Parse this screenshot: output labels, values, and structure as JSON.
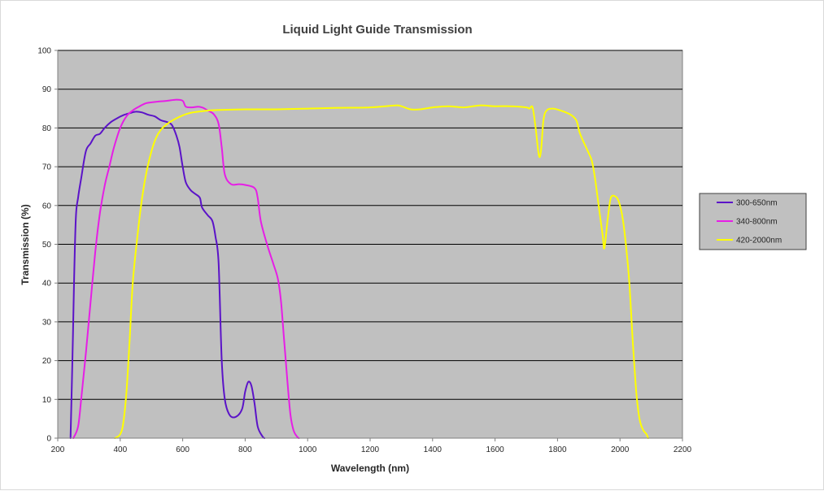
{
  "chart_data": {
    "type": "line",
    "title": "Liquid Light Guide Transmission",
    "xlabel": "Wavelength (nm)",
    "ylabel": "Transmission (%)",
    "xlim": [
      200,
      2200
    ],
    "ylim": [
      0,
      100
    ],
    "xticks": [
      200,
      400,
      600,
      800,
      1000,
      1200,
      1400,
      1600,
      1800,
      2000,
      2200
    ],
    "yticks": [
      0,
      10,
      20,
      30,
      40,
      50,
      60,
      70,
      80,
      90,
      100
    ],
    "grid": "horizontal",
    "legend_position": "right",
    "plot_background": "#c0c0c0",
    "series": [
      {
        "name": "300-650nm",
        "color": "#5b13c8",
        "points": [
          [
            241,
            0
          ],
          [
            247,
            20
          ],
          [
            252,
            40
          ],
          [
            258,
            57
          ],
          [
            265,
            62
          ],
          [
            275,
            67
          ],
          [
            290,
            74
          ],
          [
            305,
            76
          ],
          [
            320,
            78
          ],
          [
            335,
            78.5
          ],
          [
            350,
            80
          ],
          [
            370,
            81.5
          ],
          [
            390,
            82.5
          ],
          [
            410,
            83.3
          ],
          [
            430,
            83.8
          ],
          [
            450,
            84.2
          ],
          [
            470,
            84
          ],
          [
            490,
            83.4
          ],
          [
            510,
            83
          ],
          [
            530,
            82
          ],
          [
            550,
            81.5
          ],
          [
            565,
            80.8
          ],
          [
            580,
            78
          ],
          [
            590,
            75
          ],
          [
            600,
            70
          ],
          [
            610,
            66
          ],
          [
            625,
            64
          ],
          [
            640,
            63
          ],
          [
            655,
            62
          ],
          [
            662,
            59.5
          ],
          [
            680,
            57.5
          ],
          [
            695,
            56
          ],
          [
            705,
            52
          ],
          [
            715,
            45
          ],
          [
            725,
            20
          ],
          [
            735,
            10
          ],
          [
            750,
            6
          ],
          [
            770,
            5.5
          ],
          [
            790,
            7.5
          ],
          [
            800,
            12
          ],
          [
            810,
            14.5
          ],
          [
            820,
            13.5
          ],
          [
            830,
            9
          ],
          [
            840,
            3
          ],
          [
            855,
            0.5
          ],
          [
            862,
            0
          ]
        ]
      },
      {
        "name": "340-800nm",
        "color": "#e61ee6",
        "points": [
          [
            250,
            0
          ],
          [
            265,
            3
          ],
          [
            275,
            10
          ],
          [
            290,
            22
          ],
          [
            305,
            35
          ],
          [
            320,
            48
          ],
          [
            335,
            58
          ],
          [
            350,
            65
          ],
          [
            365,
            70
          ],
          [
            380,
            75
          ],
          [
            400,
            80
          ],
          [
            420,
            83
          ],
          [
            440,
            84.5
          ],
          [
            460,
            85.5
          ],
          [
            480,
            86.3
          ],
          [
            500,
            86.6
          ],
          [
            520,
            86.8
          ],
          [
            550,
            87
          ],
          [
            580,
            87.3
          ],
          [
            600,
            87
          ],
          [
            610,
            85.5
          ],
          [
            630,
            85.3
          ],
          [
            650,
            85.5
          ],
          [
            665,
            85.2
          ],
          [
            680,
            84.5
          ],
          [
            700,
            83.5
          ],
          [
            715,
            81
          ],
          [
            725,
            75
          ],
          [
            735,
            68
          ],
          [
            755,
            65.5
          ],
          [
            780,
            65.5
          ],
          [
            800,
            65.3
          ],
          [
            830,
            64.5
          ],
          [
            840,
            62
          ],
          [
            850,
            56
          ],
          [
            870,
            50
          ],
          [
            890,
            45
          ],
          [
            905,
            41
          ],
          [
            915,
            35
          ],
          [
            925,
            25
          ],
          [
            935,
            15
          ],
          [
            945,
            6
          ],
          [
            955,
            2
          ],
          [
            965,
            0.5
          ],
          [
            972,
            0
          ]
        ]
      },
      {
        "name": "420-2000nm",
        "color": "#ffff00",
        "points": [
          [
            383,
            0
          ],
          [
            400,
            1
          ],
          [
            410,
            4
          ],
          [
            420,
            12
          ],
          [
            430,
            25
          ],
          [
            440,
            40
          ],
          [
            455,
            52
          ],
          [
            470,
            62
          ],
          [
            485,
            69
          ],
          [
            500,
            74
          ],
          [
            515,
            77.5
          ],
          [
            530,
            79.5
          ],
          [
            550,
            81
          ],
          [
            580,
            82.5
          ],
          [
            620,
            83.8
          ],
          [
            660,
            84.3
          ],
          [
            700,
            84.6
          ],
          [
            800,
            84.8
          ],
          [
            900,
            84.8
          ],
          [
            1000,
            85
          ],
          [
            1100,
            85.2
          ],
          [
            1200,
            85.3
          ],
          [
            1280,
            85.8
          ],
          [
            1300,
            85.6
          ],
          [
            1330,
            84.8
          ],
          [
            1360,
            84.8
          ],
          [
            1400,
            85.3
          ],
          [
            1450,
            85.6
          ],
          [
            1500,
            85.3
          ],
          [
            1550,
            85.8
          ],
          [
            1600,
            85.6
          ],
          [
            1650,
            85.6
          ],
          [
            1700,
            85.3
          ],
          [
            1710,
            85
          ],
          [
            1720,
            85.3
          ],
          [
            1730,
            80
          ],
          [
            1740,
            73
          ],
          [
            1747,
            74
          ],
          [
            1755,
            82
          ],
          [
            1765,
            84.5
          ],
          [
            1785,
            85
          ],
          [
            1810,
            84.5
          ],
          [
            1840,
            83.5
          ],
          [
            1860,
            82
          ],
          [
            1870,
            79
          ],
          [
            1880,
            77
          ],
          [
            1900,
            73.5
          ],
          [
            1910,
            71.5
          ],
          [
            1920,
            67
          ],
          [
            1935,
            58
          ],
          [
            1945,
            52
          ],
          [
            1950,
            49
          ],
          [
            1960,
            56
          ],
          [
            1968,
            61
          ],
          [
            1975,
            62.5
          ],
          [
            1990,
            62
          ],
          [
            2000,
            60
          ],
          [
            2010,
            56
          ],
          [
            2020,
            49
          ],
          [
            2030,
            40
          ],
          [
            2040,
            26
          ],
          [
            2050,
            14
          ],
          [
            2057,
            8
          ],
          [
            2065,
            4
          ],
          [
            2075,
            2
          ],
          [
            2085,
            1
          ],
          [
            2090,
            0
          ]
        ]
      }
    ]
  }
}
